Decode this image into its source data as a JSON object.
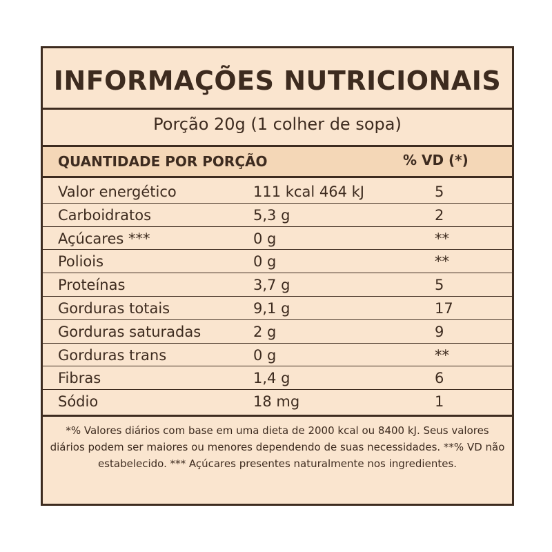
{
  "title": "INFORMAÇÕES NUTRICIONAIS",
  "serving": "Porção 20g (1 colher de sopa)",
  "header": {
    "quantity_label": "QUANTIDADE POR PORÇÃO",
    "dv_label": "% VD (*)"
  },
  "rows": [
    {
      "name": "Valor energético",
      "amount": "111 kcal  464 kJ",
      "dv": "5"
    },
    {
      "name": "Carboidratos",
      "amount": "5,3 g",
      "dv": "2"
    },
    {
      "name": "Açúcares ***",
      "amount": "0 g",
      "dv": "**"
    },
    {
      "name": "Poliois",
      "amount": "0 g",
      "dv": "**"
    },
    {
      "name": "Proteínas",
      "amount": "3,7 g",
      "dv": "5"
    },
    {
      "name": "Gorduras totais",
      "amount": "9,1 g",
      "dv": "17"
    },
    {
      "name": "Gorduras saturadas",
      "amount": "2 g",
      "dv": "9"
    },
    {
      "name": "Gorduras trans",
      "amount": "0 g",
      "dv": "**"
    },
    {
      "name": "Fibras",
      "amount": "1,4 g",
      "dv": "6"
    },
    {
      "name": "Sódio",
      "amount": "18 mg",
      "dv": "1"
    }
  ],
  "footnote": "*% Valores diários com base em uma dieta de 2000 kcal ou 8400 kJ. Seus valores diários podem ser maiores ou menores dependendo de suas necessidades. **% VD não estabelecido. *** Açúcares presentes naturalmente nos ingredientes.",
  "colors": {
    "background": "#fae5cf",
    "header_band": "#f4d7b7",
    "text": "#3d2b1f"
  }
}
